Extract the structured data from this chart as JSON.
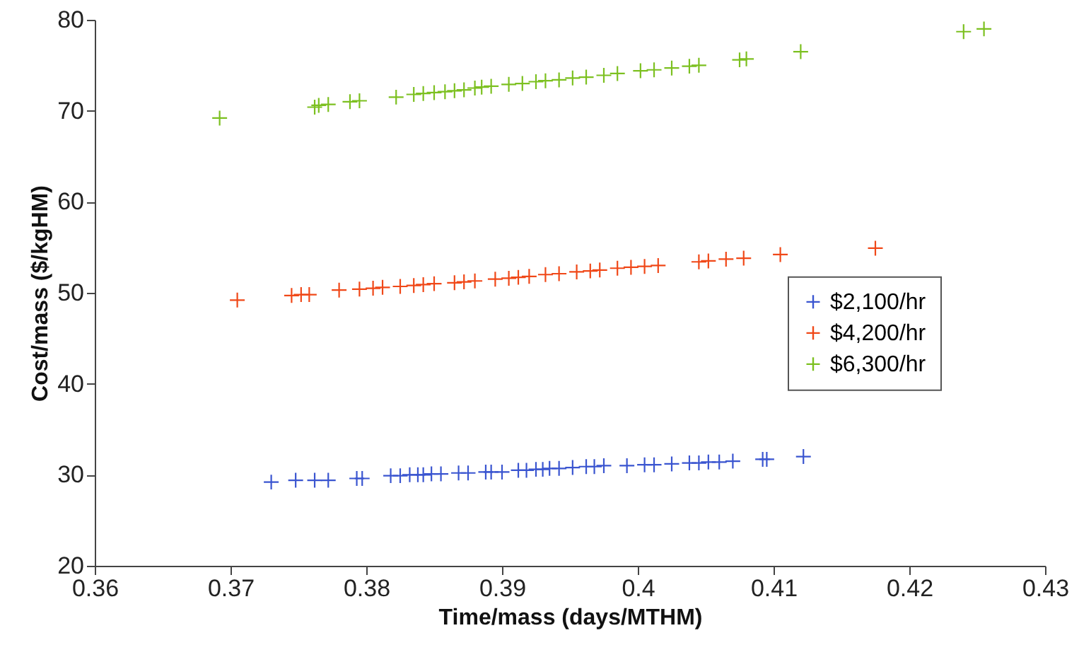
{
  "chart_data": {
    "type": "scatter",
    "xlabel": "Time/mass (days/MTHM)",
    "ylabel": "Cost/mass ($/kgHM)",
    "xlim": [
      0.36,
      0.43
    ],
    "xticks": [
      0.36,
      0.37,
      0.38,
      0.39,
      0.4,
      0.41,
      0.42,
      0.43
    ],
    "ylim": [
      20,
      80
    ],
    "yticks": [
      20,
      30,
      40,
      50,
      60,
      70,
      80
    ],
    "grid": false,
    "legend": "right",
    "marker": "cross",
    "series": [
      {
        "name": "$2,100/hr",
        "color": "#3a55d0",
        "x": [
          0.373,
          0.3748,
          0.3762,
          0.3772,
          0.3793,
          0.3797,
          0.3818,
          0.3825,
          0.3832,
          0.3838,
          0.3842,
          0.3848,
          0.3855,
          0.3868,
          0.3875,
          0.3888,
          0.3892,
          0.39,
          0.3912,
          0.3918,
          0.3925,
          0.393,
          0.3935,
          0.3942,
          0.3952,
          0.3962,
          0.3968,
          0.3975,
          0.3992,
          0.4005,
          0.4012,
          0.4025,
          0.4038,
          0.4045,
          0.4052,
          0.406,
          0.407,
          0.4092,
          0.4095,
          0.4122
        ],
        "values": [
          29.2,
          29.4,
          29.4,
          29.4,
          29.6,
          29.6,
          29.9,
          29.9,
          30.0,
          30.0,
          30.0,
          30.1,
          30.1,
          30.2,
          30.2,
          30.3,
          30.3,
          30.3,
          30.5,
          30.5,
          30.6,
          30.6,
          30.7,
          30.7,
          30.8,
          30.9,
          30.9,
          31.0,
          31.0,
          31.1,
          31.1,
          31.2,
          31.3,
          31.3,
          31.4,
          31.4,
          31.5,
          31.7,
          31.7,
          32.0
        ]
      },
      {
        "name": "$4,200/hr",
        "color": "#f04818",
        "x": [
          0.3705,
          0.3745,
          0.3752,
          0.3758,
          0.378,
          0.3795,
          0.3805,
          0.3812,
          0.3825,
          0.3835,
          0.3842,
          0.385,
          0.3865,
          0.3872,
          0.388,
          0.3895,
          0.3905,
          0.3912,
          0.392,
          0.3932,
          0.3942,
          0.3955,
          0.3965,
          0.3972,
          0.3985,
          0.3995,
          0.4005,
          0.4015,
          0.4045,
          0.4052,
          0.4065,
          0.4078,
          0.4105,
          0.4175
        ],
        "values": [
          49.2,
          49.7,
          49.8,
          49.8,
          50.3,
          50.4,
          50.5,
          50.6,
          50.7,
          50.8,
          50.9,
          51.0,
          51.1,
          51.2,
          51.3,
          51.5,
          51.6,
          51.7,
          51.8,
          52.0,
          52.1,
          52.3,
          52.4,
          52.5,
          52.7,
          52.8,
          52.9,
          53.0,
          53.4,
          53.5,
          53.7,
          53.8,
          54.2,
          54.9
        ]
      },
      {
        "name": "$6,300/hr",
        "color": "#7cc020",
        "x": [
          0.3692,
          0.3762,
          0.3765,
          0.3772,
          0.3788,
          0.3795,
          0.3822,
          0.3835,
          0.3842,
          0.385,
          0.3858,
          0.3865,
          0.3872,
          0.388,
          0.3885,
          0.3892,
          0.3905,
          0.3915,
          0.3925,
          0.3932,
          0.3942,
          0.3952,
          0.3962,
          0.3975,
          0.3985,
          0.4002,
          0.4012,
          0.4025,
          0.4038,
          0.4045,
          0.4075,
          0.408,
          0.412,
          0.424,
          0.4255
        ],
        "values": [
          69.2,
          70.4,
          70.6,
          70.7,
          71.0,
          71.1,
          71.5,
          71.8,
          71.9,
          72.0,
          72.1,
          72.2,
          72.3,
          72.5,
          72.6,
          72.7,
          72.9,
          73.0,
          73.2,
          73.3,
          73.4,
          73.6,
          73.7,
          73.9,
          74.1,
          74.4,
          74.5,
          74.7,
          74.9,
          75.0,
          75.6,
          75.7,
          76.5,
          78.7,
          79.0
        ]
      }
    ]
  }
}
